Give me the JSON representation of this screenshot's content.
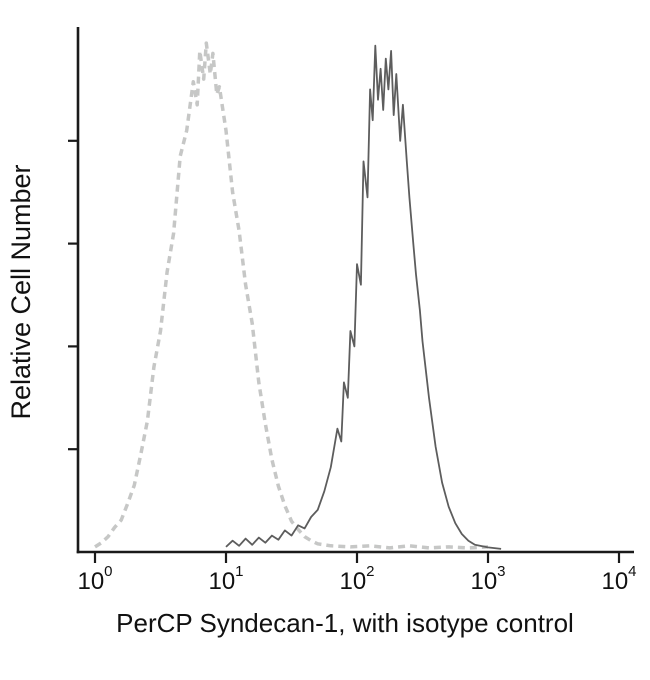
{
  "page": {
    "background": "#ffffff"
  },
  "chart_data": {
    "type": "line",
    "subtype": "flow_cytometry_histogram_overlay",
    "title": "",
    "xlabel": "PerCP Syndecan-1, with isotype control",
    "ylabel": "Relative Cell Number",
    "axis_color": "#1a1a1a",
    "x_axis": {
      "scale": "log10",
      "min": 1,
      "max": 10000,
      "tick_base": "10",
      "tick_exponents": [
        0,
        1,
        2,
        3,
        4
      ]
    },
    "y_axis": {
      "tick_count": 4,
      "numeric_labels_shown": false,
      "range": "relative 0 to max"
    },
    "legend": {
      "shown": false
    },
    "series": [
      {
        "id": "isotype-control-curve",
        "name": "Isotype control",
        "line_style": "dashed",
        "color": "#c6c7c6",
        "line_width": 3.5,
        "dash_pattern": [
          7,
          5
        ],
        "peak_value_x": 7,
        "peak_log10x": 0.85,
        "points_log10x_height": [
          [
            0.0,
            0.01
          ],
          [
            0.05,
            0.018
          ],
          [
            0.1,
            0.03
          ],
          [
            0.15,
            0.048
          ],
          [
            0.2,
            0.062
          ],
          [
            0.25,
            0.095
          ],
          [
            0.3,
            0.13
          ],
          [
            0.35,
            0.19
          ],
          [
            0.4,
            0.255
          ],
          [
            0.45,
            0.36
          ],
          [
            0.5,
            0.43
          ],
          [
            0.55,
            0.545
          ],
          [
            0.6,
            0.62
          ],
          [
            0.65,
            0.77
          ],
          [
            0.7,
            0.82
          ],
          [
            0.75,
            0.915
          ],
          [
            0.78,
            0.87
          ],
          [
            0.8,
            0.975
          ],
          [
            0.83,
            0.92
          ],
          [
            0.85,
            0.99
          ],
          [
            0.88,
            0.93
          ],
          [
            0.9,
            0.97
          ],
          [
            0.93,
            0.89
          ],
          [
            0.95,
            0.905
          ],
          [
            1.0,
            0.82
          ],
          [
            1.05,
            0.7
          ],
          [
            1.1,
            0.625
          ],
          [
            1.15,
            0.52
          ],
          [
            1.2,
            0.445
          ],
          [
            1.25,
            0.33
          ],
          [
            1.3,
            0.25
          ],
          [
            1.35,
            0.18
          ],
          [
            1.4,
            0.128
          ],
          [
            1.45,
            0.09
          ],
          [
            1.5,
            0.06
          ],
          [
            1.55,
            0.044
          ],
          [
            1.6,
            0.03
          ],
          [
            1.65,
            0.022
          ],
          [
            1.7,
            0.016
          ],
          [
            1.8,
            0.012
          ],
          [
            1.95,
            0.01
          ],
          [
            2.1,
            0.012
          ],
          [
            2.25,
            0.008
          ],
          [
            2.4,
            0.012
          ],
          [
            2.55,
            0.008
          ],
          [
            2.7,
            0.01
          ],
          [
            2.85,
            0.008
          ],
          [
            3.0,
            0.01
          ]
        ]
      },
      {
        "id": "syndecan-1-curve",
        "name": "PerCP Syndecan-1",
        "line_style": "solid",
        "color": "#5d5d5d",
        "line_width": 1.8,
        "dash_pattern": [],
        "peak_value_x": 170,
        "peak_log10x": 2.2,
        "points_log10x_height": [
          [
            1.0,
            0.01
          ],
          [
            1.05,
            0.022
          ],
          [
            1.1,
            0.012
          ],
          [
            1.15,
            0.026
          ],
          [
            1.2,
            0.014
          ],
          [
            1.25,
            0.028
          ],
          [
            1.3,
            0.018
          ],
          [
            1.35,
            0.032
          ],
          [
            1.4,
            0.024
          ],
          [
            1.45,
            0.042
          ],
          [
            1.5,
            0.032
          ],
          [
            1.55,
            0.052
          ],
          [
            1.6,
            0.046
          ],
          [
            1.65,
            0.068
          ],
          [
            1.7,
            0.082
          ],
          [
            1.75,
            0.118
          ],
          [
            1.8,
            0.165
          ],
          [
            1.85,
            0.24
          ],
          [
            1.88,
            0.215
          ],
          [
            1.9,
            0.33
          ],
          [
            1.93,
            0.3
          ],
          [
            1.95,
            0.43
          ],
          [
            1.98,
            0.4
          ],
          [
            2.0,
            0.56
          ],
          [
            2.03,
            0.52
          ],
          [
            2.05,
            0.76
          ],
          [
            2.08,
            0.69
          ],
          [
            2.1,
            0.9
          ],
          [
            2.12,
            0.84
          ],
          [
            2.14,
            0.985
          ],
          [
            2.16,
            0.88
          ],
          [
            2.18,
            0.94
          ],
          [
            2.2,
            0.86
          ],
          [
            2.22,
            0.96
          ],
          [
            2.24,
            0.9
          ],
          [
            2.26,
            0.975
          ],
          [
            2.28,
            0.85
          ],
          [
            2.3,
            0.93
          ],
          [
            2.33,
            0.8
          ],
          [
            2.35,
            0.87
          ],
          [
            2.38,
            0.76
          ],
          [
            2.4,
            0.69
          ],
          [
            2.43,
            0.6
          ],
          [
            2.45,
            0.54
          ],
          [
            2.48,
            0.47
          ],
          [
            2.5,
            0.41
          ],
          [
            2.55,
            0.3
          ],
          [
            2.6,
            0.205
          ],
          [
            2.65,
            0.135
          ],
          [
            2.7,
            0.088
          ],
          [
            2.75,
            0.056
          ],
          [
            2.8,
            0.035
          ],
          [
            2.85,
            0.022
          ],
          [
            2.9,
            0.014
          ],
          [
            3.0,
            0.009
          ],
          [
            3.1,
            0.006
          ]
        ]
      }
    ]
  }
}
